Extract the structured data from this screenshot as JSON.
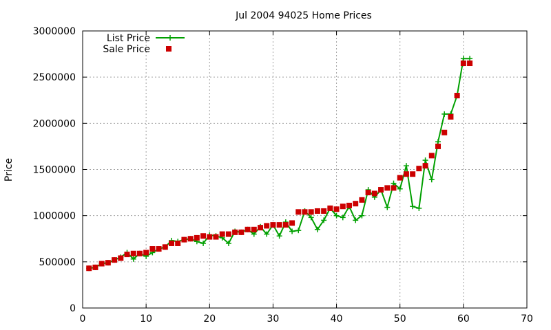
{
  "chart_data": {
    "type": "line",
    "title": "Jul 2004 94025 Home Prices",
    "xlabel": "",
    "ylabel": "Price",
    "xlim": [
      0,
      70
    ],
    "ylim": [
      0,
      3000000
    ],
    "xticks": [
      0,
      10,
      20,
      30,
      40,
      50,
      60,
      70
    ],
    "yticks": [
      0,
      500000,
      1000000,
      1500000,
      2000000,
      2500000,
      3000000
    ],
    "grid": true,
    "legend": "top-left",
    "series": [
      {
        "name": "List Price",
        "style": "line-plus",
        "color": "#00a000",
        "x": [
          1,
          2,
          3,
          4,
          5,
          6,
          7,
          8,
          9,
          10,
          11,
          12,
          13,
          14,
          15,
          16,
          17,
          18,
          19,
          20,
          21,
          22,
          23,
          24,
          25,
          26,
          27,
          28,
          29,
          30,
          31,
          32,
          33,
          34,
          35,
          36,
          37,
          38,
          39,
          40,
          41,
          42,
          43,
          44,
          45,
          46,
          47,
          48,
          49,
          50,
          51,
          52,
          53,
          54,
          55,
          56,
          57,
          58,
          59,
          60,
          61
        ],
        "y": [
          430000,
          440000,
          480000,
          490000,
          520000,
          550000,
          600000,
          530000,
          590000,
          560000,
          600000,
          640000,
          660000,
          730000,
          720000,
          740000,
          750000,
          720000,
          700000,
          790000,
          780000,
          760000,
          700000,
          830000,
          820000,
          850000,
          800000,
          880000,
          800000,
          900000,
          780000,
          930000,
          830000,
          840000,
          1050000,
          980000,
          850000,
          950000,
          1080000,
          1000000,
          980000,
          1100000,
          950000,
          1000000,
          1280000,
          1200000,
          1280000,
          1090000,
          1350000,
          1290000,
          1540000,
          1100000,
          1080000,
          1600000,
          1390000,
          1800000,
          2100000,
          2100000,
          2300000,
          2700000,
          2700000
        ]
      },
      {
        "name": "Sale Price",
        "style": "square",
        "color": "#cc0000",
        "x": [
          1,
          2,
          3,
          4,
          5,
          6,
          7,
          8,
          9,
          10,
          11,
          12,
          13,
          14,
          15,
          16,
          17,
          18,
          19,
          20,
          21,
          22,
          23,
          24,
          25,
          26,
          27,
          28,
          29,
          30,
          31,
          32,
          33,
          34,
          35,
          36,
          37,
          38,
          39,
          40,
          41,
          42,
          43,
          44,
          45,
          46,
          47,
          48,
          49,
          50,
          51,
          52,
          53,
          54,
          55,
          56,
          57,
          58,
          59,
          60,
          61
        ],
        "y": [
          430000,
          440000,
          480000,
          490000,
          520000,
          540000,
          580000,
          590000,
          590000,
          600000,
          640000,
          640000,
          660000,
          700000,
          700000,
          740000,
          750000,
          760000,
          780000,
          770000,
          770000,
          800000,
          800000,
          820000,
          820000,
          850000,
          850000,
          870000,
          890000,
          900000,
          900000,
          900000,
          920000,
          1040000,
          1040000,
          1040000,
          1050000,
          1050000,
          1080000,
          1070000,
          1100000,
          1110000,
          1130000,
          1170000,
          1250000,
          1240000,
          1280000,
          1300000,
          1300000,
          1410000,
          1450000,
          1450000,
          1510000,
          1540000,
          1650000,
          1750000,
          1900000,
          2070000,
          2300000,
          2650000,
          2650000
        ]
      }
    ]
  }
}
